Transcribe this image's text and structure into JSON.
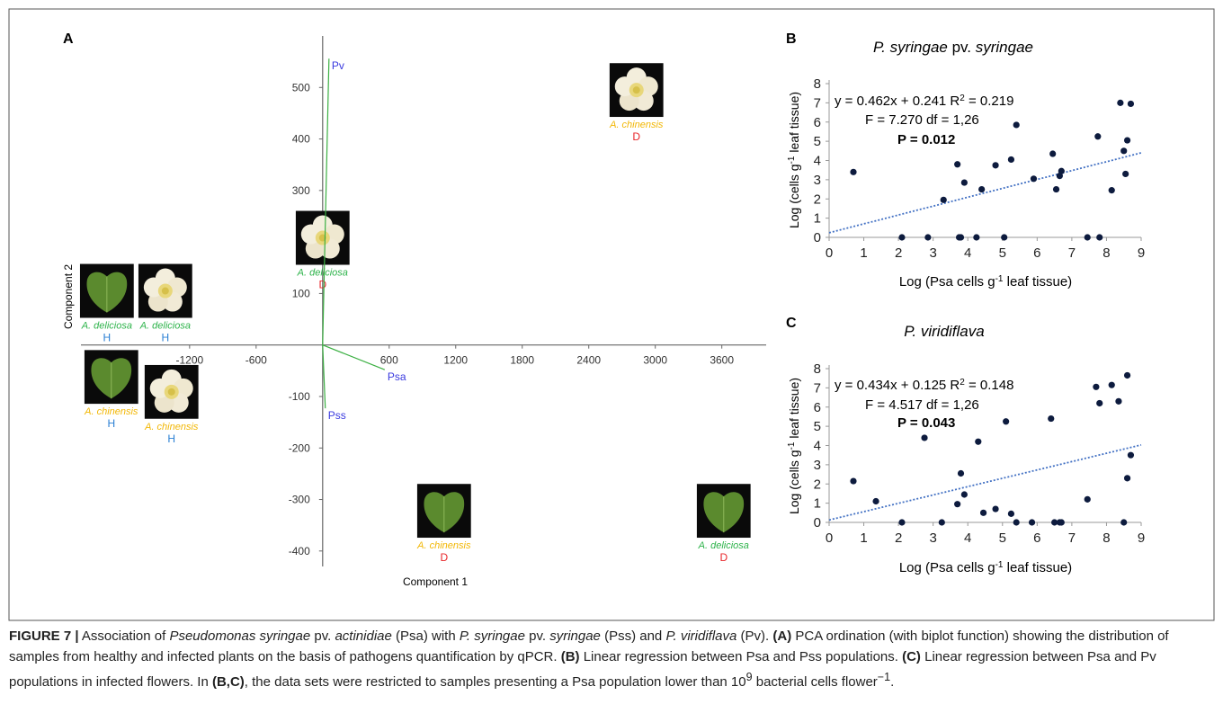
{
  "panel_labels": [
    "A",
    "B",
    "C"
  ],
  "chart_data": [
    {
      "type": "biplot",
      "x_label": "Component 1",
      "y_label": "Component 2",
      "xlim": [
        -2180,
        4000
      ],
      "ylim": [
        -430,
        600
      ],
      "xticks": [
        -1200,
        -600,
        600,
        1200,
        1800,
        2400,
        3000,
        3600
      ],
      "yticks": [
        -400,
        -300,
        -200,
        -100,
        100,
        300,
        400,
        500
      ],
      "vectors": {
        "names": [
          "Pv",
          "Psa",
          "Pss"
        ],
        "x": [
          57,
          560,
          24
        ],
        "y": [
          556,
          -48,
          -123
        ],
        "color": "#3cb043",
        "label_color": "#3a3adf"
      },
      "samples": {
        "labels": [
          "A. deliciosa",
          "A. deliciosa",
          "A. chinensis",
          "A. chinensis",
          "A. chinensis",
          "A. deliciosa",
          "A. chinensis",
          "A. deliciosa"
        ],
        "groups": [
          "H",
          "H",
          "H",
          "H",
          "D",
          "D",
          "D",
          "D"
        ],
        "x": [
          -1946,
          -1419,
          -1906,
          -1363,
          2830,
          0,
          1095,
          3617
        ],
        "y": [
          105,
          105,
          -62,
          -91,
          495,
          208,
          -322,
          -322
        ],
        "label_colors": [
          "#2db34a",
          "#2db34a",
          "#f2b705",
          "#f2b705",
          "#f2b705",
          "#2db34a",
          "#f2b705",
          "#2db34a"
        ],
        "group_colors": [
          "#2a7fd4",
          "#2a7fd4",
          "#2a7fd4",
          "#2a7fd4",
          "#e8262a",
          "#e8262a",
          "#e8262a",
          "#e8262a"
        ]
      }
    },
    {
      "type": "scatter",
      "title_parts": [
        "P. syringae",
        " pv. ",
        "syringae"
      ],
      "x_label_parts": [
        "Log (Psa cells g",
        "-1",
        " leaf tissue)"
      ],
      "y_label_parts": [
        "Log (cells g",
        "-1",
        " leaf tissue)"
      ],
      "equation_parts": [
        "y = 0.462x + 0.241 R",
        "2",
        " = 0.219"
      ],
      "f_text": "F = 7.270 df = 1,26",
      "p_text": "P = 0.012",
      "trendline": {
        "slope": 0.462,
        "intercept": 0.241,
        "color": "#4472c4"
      },
      "color": "#0d1b3e",
      "x": [
        0.7,
        2.1,
        2.85,
        3.3,
        3.7,
        3.75,
        3.8,
        3.9,
        4.25,
        4.4,
        4.8,
        5.05,
        5.25,
        5.4,
        5.9,
        6.45,
        6.55,
        6.65,
        6.7,
        7.45,
        7.75,
        7.8,
        8.15,
        8.4,
        8.5,
        8.55,
        8.6,
        8.7
      ],
      "y": [
        3.4,
        0,
        0,
        1.95,
        3.8,
        0,
        0,
        2.85,
        0,
        2.5,
        3.75,
        0,
        4.05,
        5.85,
        3.05,
        4.35,
        2.5,
        3.2,
        3.45,
        0,
        5.25,
        0,
        2.45,
        7.0,
        4.5,
        3.3,
        5.05,
        6.95
      ],
      "xlim": [
        0,
        9
      ],
      "ylim": [
        0,
        8
      ],
      "xticks": [
        0,
        1,
        2,
        3,
        4,
        5,
        6,
        7,
        8,
        9
      ],
      "yticks": [
        0,
        1,
        2,
        3,
        4,
        5,
        6,
        7,
        8
      ]
    },
    {
      "type": "scatter",
      "title_parts": [
        "P. viridiflava"
      ],
      "x_label_parts": [
        "Log (Psa cells g",
        "-1",
        " leaf tissue)"
      ],
      "y_label_parts": [
        "Log (cells g",
        "-1",
        " leaf tissue)"
      ],
      "equation_parts": [
        "y = 0.434x + 0.125 R",
        "2",
        " = 0.148"
      ],
      "f_text": "F = 4.517 df = 1,26",
      "p_text": "P = 0.043",
      "trendline": {
        "slope": 0.434,
        "intercept": 0.125,
        "color": "#4472c4"
      },
      "color": "#0d1b3e",
      "x": [
        0.7,
        1.35,
        2.1,
        3.25,
        2.75,
        3.7,
        3.8,
        3.9,
        4.3,
        4.45,
        4.8,
        5.1,
        5.25,
        5.4,
        5.85,
        6.4,
        6.5,
        6.65,
        6.7,
        7.45,
        7.7,
        7.8,
        8.15,
        8.35,
        8.5,
        8.6,
        8.6,
        8.7
      ],
      "y": [
        2.15,
        1.1,
        0,
        0,
        4.4,
        0.95,
        2.55,
        1.45,
        4.2,
        0.5,
        0.7,
        5.25,
        0.45,
        0,
        0,
        5.4,
        0,
        0,
        0,
        1.2,
        7.05,
        6.2,
        7.15,
        6.3,
        0,
        7.65,
        2.3,
        3.5
      ],
      "xlim": [
        0,
        9
      ],
      "ylim": [
        0,
        8
      ],
      "xticks": [
        0,
        1,
        2,
        3,
        4,
        5,
        6,
        7,
        8,
        9
      ],
      "yticks": [
        0,
        1,
        2,
        3,
        4,
        5,
        6,
        7,
        8
      ]
    }
  ],
  "caption": {
    "parts": [
      "FIGURE 7 |",
      " Association of ",
      "Pseudomonas syringae",
      " pv. ",
      "actinidiae",
      " (Psa) with ",
      "P. syringae",
      " pv. ",
      "syringae",
      " (Pss) and ",
      "P. viridiflava",
      " (Pv). ",
      "(A)",
      " PCA ordination (with biplot function) showing the distribution of samples from healthy and infected plants on the basis of pathogens quantification by qPCR. ",
      "(B)",
      " Linear regression between Psa and Pss populations. ",
      "(C)",
      " Linear regression between Psa and Pv populations in infected flowers. In ",
      "(B,C)",
      ", the data sets were restricted to samples presenting a Psa population lower than 10",
      "9",
      " bacterial cells flower",
      "−1",
      "."
    ]
  }
}
